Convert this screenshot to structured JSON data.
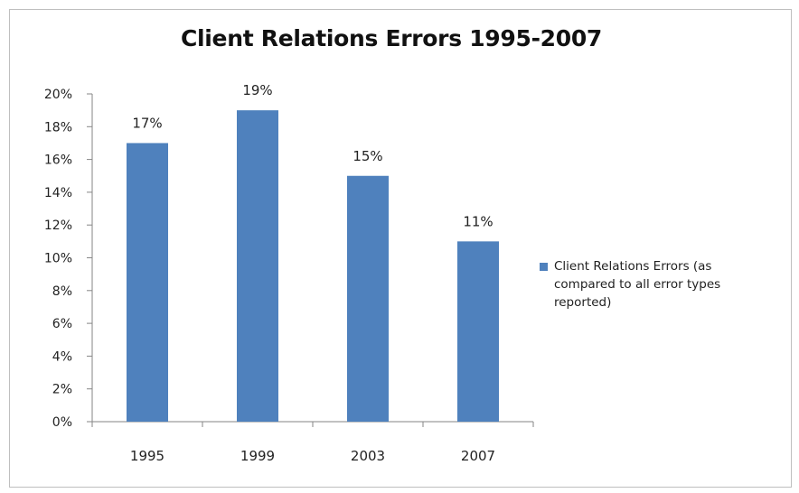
{
  "chart_data": {
    "type": "bar",
    "title": "Client Relations Errors 1995-2007",
    "categories": [
      "1995",
      "1999",
      "2003",
      "2007"
    ],
    "series": [
      {
        "name": "Client Relations Errors (as compared to all error types reported)",
        "values": [
          17,
          19,
          15,
          11
        ],
        "data_labels": [
          "17%",
          "19%",
          "15%",
          "11%"
        ],
        "color": "#4f81bd"
      }
    ],
    "ylim": [
      0,
      20
    ],
    "yticks": [
      "0%",
      "2%",
      "4%",
      "6%",
      "8%",
      "10%",
      "12%",
      "14%",
      "16%",
      "18%",
      "20%"
    ],
    "xlabel": "",
    "ylabel": "",
    "grid": false,
    "legend": "right"
  }
}
